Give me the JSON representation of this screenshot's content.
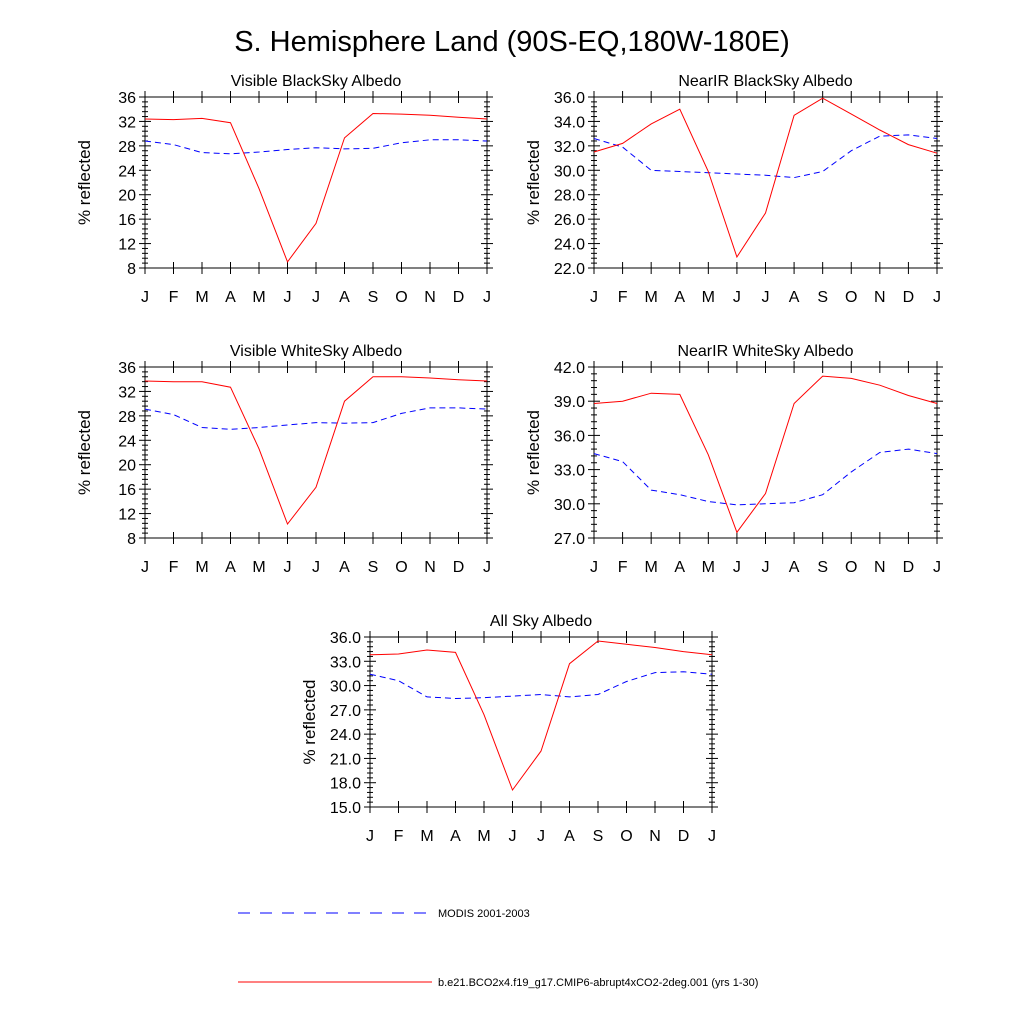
{
  "figure": {
    "title": "S. Hemisphere Land (90S-EQ,180W-180E)",
    "legend": [
      {
        "label": "MODIS 2001-2003",
        "color": "#0000ff",
        "style": "dashed"
      },
      {
        "label": "b.e21.BCO2x4.f19_g17.CMIP6-abrupt4xCO2-2deg.001 (yrs 1-30)",
        "color": "#ff0000",
        "style": "solid"
      }
    ]
  },
  "chart_data": [
    {
      "type": "line",
      "title": "Visible BlackSky Albedo",
      "xlabel": "",
      "ylabel": "% reflected",
      "categories": [
        "J",
        "F",
        "M",
        "A",
        "M",
        "J",
        "J",
        "A",
        "S",
        "O",
        "N",
        "D",
        "J"
      ],
      "ylim": [
        8,
        36
      ],
      "yticks": [
        "8",
        "12",
        "16",
        "20",
        "24",
        "28",
        "32",
        "36"
      ],
      "series": [
        {
          "name": "MODIS 2001-2003",
          "color": "#0000ff",
          "dashed": true,
          "values": [
            28.8,
            28.2,
            26.9,
            26.7,
            27.0,
            27.4,
            27.7,
            27.5,
            27.6,
            28.5,
            29.0,
            29.0,
            28.8
          ]
        },
        {
          "name": "b.e21.BCO2x4.f19_g17.CMIP6-abrupt4xCO2-2deg.001 (yrs 1-30)",
          "color": "#ff0000",
          "dashed": false,
          "values": [
            32.4,
            32.3,
            32.5,
            31.8,
            21.0,
            9.0,
            15.3,
            29.3,
            33.3,
            33.2,
            33.0,
            32.7,
            32.4
          ]
        }
      ]
    },
    {
      "type": "line",
      "title": "NearIR BlackSky Albedo",
      "xlabel": "",
      "ylabel": "% reflected",
      "categories": [
        "J",
        "F",
        "M",
        "A",
        "M",
        "J",
        "J",
        "A",
        "S",
        "O",
        "N",
        "D",
        "J"
      ],
      "ylim": [
        22,
        36
      ],
      "yticks": [
        "22.0",
        "24.0",
        "26.0",
        "28.0",
        "30.0",
        "32.0",
        "34.0",
        "36.0"
      ],
      "series": [
        {
          "name": "MODIS 2001-2003",
          "color": "#0000ff",
          "dashed": true,
          "values": [
            32.6,
            31.9,
            30.0,
            29.9,
            29.8,
            29.7,
            29.6,
            29.4,
            29.9,
            31.6,
            32.8,
            32.9,
            32.6
          ]
        },
        {
          "name": "b.e21.BCO2x4.f19_g17.CMIP6-abrupt4xCO2-2deg.001 (yrs 1-30)",
          "color": "#ff0000",
          "dashed": false,
          "values": [
            31.5,
            32.2,
            33.8,
            35.0,
            29.9,
            22.9,
            26.5,
            34.5,
            35.9,
            34.6,
            33.3,
            32.1,
            31.4
          ]
        }
      ]
    },
    {
      "type": "line",
      "title": "Visible WhiteSky Albedo",
      "xlabel": "",
      "ylabel": "% reflected",
      "categories": [
        "J",
        "F",
        "M",
        "A",
        "M",
        "J",
        "J",
        "A",
        "S",
        "O",
        "N",
        "D",
        "J"
      ],
      "ylim": [
        8,
        36
      ],
      "yticks": [
        "8",
        "12",
        "16",
        "20",
        "24",
        "28",
        "32",
        "36"
      ],
      "series": [
        {
          "name": "MODIS 2001-2003",
          "color": "#0000ff",
          "dashed": true,
          "values": [
            29.1,
            28.2,
            26.1,
            25.8,
            26.1,
            26.5,
            26.9,
            26.8,
            26.9,
            28.4,
            29.3,
            29.3,
            29.1
          ]
        },
        {
          "name": "b.e21.BCO2x4.f19_g17.CMIP6-abrupt4xCO2-2deg.001 (yrs 1-30)",
          "color": "#ff0000",
          "dashed": false,
          "values": [
            33.7,
            33.6,
            33.6,
            32.7,
            22.6,
            10.3,
            16.3,
            30.4,
            34.4,
            34.4,
            34.2,
            33.9,
            33.7
          ]
        }
      ]
    },
    {
      "type": "line",
      "title": "NearIR WhiteSky Albedo",
      "xlabel": "",
      "ylabel": "% reflected",
      "categories": [
        "J",
        "F",
        "M",
        "A",
        "M",
        "J",
        "J",
        "A",
        "S",
        "O",
        "N",
        "D",
        "J"
      ],
      "ylim": [
        27,
        42
      ],
      "yticks": [
        "27.0",
        "30.0",
        "33.0",
        "36.0",
        "39.0",
        "42.0"
      ],
      "series": [
        {
          "name": "MODIS 2001-2003",
          "color": "#0000ff",
          "dashed": true,
          "values": [
            34.4,
            33.7,
            31.2,
            30.8,
            30.2,
            29.9,
            30.0,
            30.1,
            30.8,
            32.8,
            34.5,
            34.8,
            34.4
          ]
        },
        {
          "name": "b.e21.BCO2x4.f19_g17.CMIP6-abrupt4xCO2-2deg.001 (yrs 1-30)",
          "color": "#ff0000",
          "dashed": false,
          "values": [
            38.8,
            39.0,
            39.7,
            39.6,
            34.3,
            27.5,
            30.9,
            38.8,
            41.2,
            41.0,
            40.4,
            39.5,
            38.8
          ]
        }
      ]
    },
    {
      "type": "line",
      "title": "All Sky Albedo",
      "xlabel": "",
      "ylabel": "% reflected",
      "categories": [
        "J",
        "F",
        "M",
        "A",
        "M",
        "J",
        "J",
        "A",
        "S",
        "O",
        "N",
        "D",
        "J"
      ],
      "ylim": [
        15,
        36
      ],
      "yticks": [
        "15.0",
        "18.0",
        "21.0",
        "24.0",
        "27.0",
        "30.0",
        "33.0",
        "36.0"
      ],
      "series": [
        {
          "name": "MODIS 2001-2003",
          "color": "#0000ff",
          "dashed": true,
          "values": [
            31.4,
            30.6,
            28.6,
            28.4,
            28.5,
            28.7,
            28.9,
            28.6,
            28.9,
            30.5,
            31.6,
            31.7,
            31.4
          ]
        },
        {
          "name": "b.e21.BCO2x4.f19_g17.CMIP6-abrupt4xCO2-2deg.001 (yrs 1-30)",
          "color": "#ff0000",
          "dashed": false,
          "values": [
            33.8,
            33.9,
            34.4,
            34.1,
            26.4,
            17.1,
            21.9,
            32.7,
            35.5,
            35.1,
            34.7,
            34.2,
            33.8
          ]
        }
      ]
    }
  ]
}
